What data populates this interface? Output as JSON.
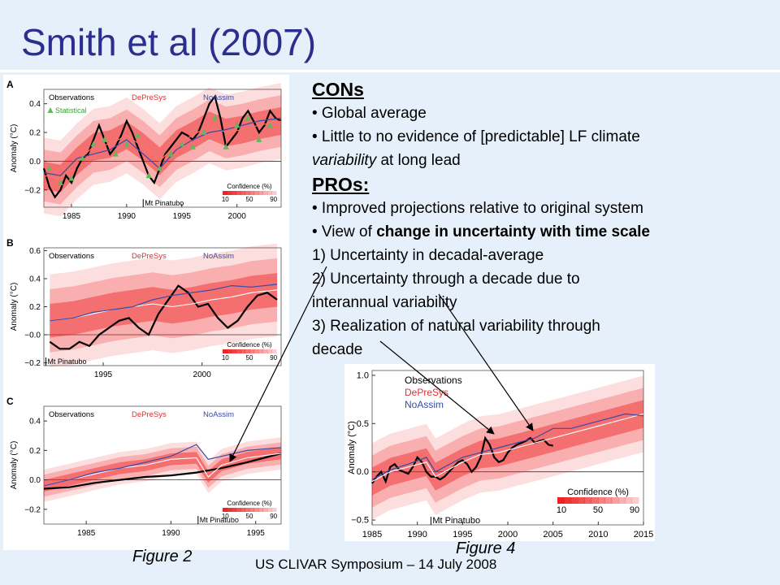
{
  "title": "Smith et al (2007)",
  "footer": "US CLIVAR Symposium  – 14 July 2008",
  "captions": {
    "fig2": "Figure 2",
    "fig4": "Figure 4"
  },
  "bullets": {
    "cons_heading": "CONs",
    "cons_1": "• Global average",
    "cons_2a": "• Little to no evidence of [predictable] LF climate",
    "cons_2b_italic": "variability",
    "cons_2b_rest": " at long lead",
    "pros_heading": "PROs:",
    "pros_1": "• Improved projections relative to original system",
    "pros_2_prefix": "• View of ",
    "pros_2_bold": "change in uncertainty with time scale",
    "item_1": "1) Uncertainty in decadal-average",
    "item_2a": "2) Uncertainty through a decade due to",
    "item_2b": "interannual variability",
    "item_3a": "3) Realization of natural variability through",
    "item_3b": "decade"
  },
  "chart_data": [
    {
      "type": "line",
      "panel_letter": "A",
      "ylabel": "Anomaly (°C)",
      "xlim": [
        1982.5,
        2004
      ],
      "ylim": [
        -0.32,
        0.5
      ],
      "xticks": [
        1985,
        1990,
        1995,
        2000
      ],
      "yticks": [
        -0.2,
        0.0,
        0.2,
        0.4
      ],
      "ytick_labels": [
        "−0.2",
        "0.0",
        "0.2",
        "0.4"
      ],
      "legend": [
        "Observations",
        "DePreSys",
        "NoAssim",
        "Statistical"
      ],
      "annotation": "Mt Pinatubo",
      "annotation_x": 1991.5,
      "confidence_label": "Confidence (%)",
      "confidence_ticks": [
        "10",
        "50",
        "90"
      ],
      "series": [
        {
          "name": "Observations",
          "color": "#000000",
          "x": [
            1982.5,
            1983,
            1983.5,
            1984,
            1984.5,
            1985,
            1985.5,
            1986,
            1986.5,
            1987,
            1987.5,
            1988,
            1988.5,
            1989,
            1989.5,
            1990,
            1990.5,
            1991,
            1991.5,
            1992,
            1992.5,
            1993,
            1993.5,
            1994,
            1994.5,
            1995,
            1995.5,
            1996,
            1996.5,
            1997,
            1997.5,
            1998,
            1998.5,
            1999,
            1999.5,
            2000,
            2000.5,
            2001,
            2001.5,
            2002,
            2002.5,
            2003,
            2003.5,
            2004
          ],
          "values": [
            -0.05,
            -0.18,
            -0.25,
            -0.2,
            -0.1,
            -0.15,
            -0.05,
            0.02,
            0.05,
            0.15,
            0.25,
            0.15,
            0.05,
            0.1,
            0.18,
            0.28,
            0.2,
            0.1,
            0.0,
            -0.1,
            -0.15,
            -0.05,
            0.05,
            0.1,
            0.15,
            0.2,
            0.18,
            0.15,
            0.2,
            0.3,
            0.4,
            0.45,
            0.3,
            0.1,
            0.15,
            0.2,
            0.3,
            0.35,
            0.28,
            0.2,
            0.25,
            0.35,
            0.3,
            0.28
          ]
        },
        {
          "name": "DePreSys",
          "color": "#f07a6e",
          "x": [
            1982.5,
            1984,
            1985.5,
            1987,
            1988.5,
            1990,
            1991.5,
            1993,
            1994.5,
            1996,
            1997.5,
            1999,
            2000.5,
            2002,
            2004
          ],
          "values": [
            -0.1,
            -0.12,
            0.0,
            0.1,
            0.12,
            0.18,
            0.1,
            0.0,
            0.12,
            0.18,
            0.25,
            0.2,
            0.22,
            0.25,
            0.28
          ],
          "band": 0.12
        },
        {
          "name": "NoAssim",
          "color": "#3a4aa8",
          "x": [
            1982.5,
            1984,
            1985.5,
            1987,
            1988.5,
            1990,
            1991.5,
            1993,
            1994.5,
            1996,
            1997.5,
            1999,
            2000.5,
            2002,
            2004
          ],
          "values": [
            -0.08,
            -0.1,
            0.02,
            0.05,
            0.08,
            0.15,
            0.05,
            -0.05,
            0.08,
            0.15,
            0.2,
            0.22,
            0.25,
            0.28,
            0.3
          ]
        },
        {
          "name": "Statistical",
          "color": "#5fb85a",
          "marker": "triangle",
          "x": [
            1983,
            1984,
            1985,
            1986,
            1987,
            1988,
            1989,
            1990,
            1991,
            1992,
            1993,
            1994,
            1995,
            1996,
            1997,
            1998,
            1999,
            2000,
            2001,
            2002,
            2003
          ],
          "values": [
            -0.05,
            -0.15,
            -0.12,
            0.02,
            0.12,
            0.15,
            0.05,
            0.12,
            0.18,
            -0.1,
            -0.05,
            0.05,
            0.12,
            0.1,
            0.2,
            0.3,
            0.1,
            0.25,
            0.3,
            0.15,
            0.25
          ]
        }
      ]
    },
    {
      "type": "line",
      "panel_letter": "B",
      "ylabel": "Anomaly (°C)",
      "xlim": [
        1992,
        2004
      ],
      "ylim": [
        -0.22,
        0.62
      ],
      "xticks": [
        1995,
        2000
      ],
      "yticks": [
        -0.2,
        0.0,
        0.2,
        0.4,
        0.6
      ],
      "ytick_labels": [
        "−0.2",
        "−0.0",
        "0.2",
        "0.4",
        "0.6"
      ],
      "legend": [
        "Observations",
        "DePreSys",
        "NoAssim"
      ],
      "annotation": "Mt Pinatubo",
      "annotation_x": 1992.1,
      "confidence_label": "Confidence (%)",
      "confidence_ticks": [
        "10",
        "50",
        "90"
      ],
      "series": [
        {
          "name": "Observations",
          "color": "#000000",
          "x": [
            1992.3,
            1992.8,
            1993.3,
            1993.8,
            1994.3,
            1994.8,
            1995.3,
            1995.8,
            1996.3,
            1996.8,
            1997.3,
            1997.8,
            1998.3,
            1998.8,
            1999.3,
            1999.8,
            2000.3,
            2000.8,
            2001.3,
            2001.8,
            2002.3,
            2002.8,
            2003.3,
            2003.8
          ],
          "values": [
            -0.05,
            -0.1,
            -0.1,
            -0.05,
            -0.08,
            0.0,
            0.05,
            0.1,
            0.12,
            0.05,
            0.0,
            0.15,
            0.25,
            0.35,
            0.3,
            0.2,
            0.22,
            0.12,
            0.05,
            0.1,
            0.2,
            0.28,
            0.3,
            0.25
          ]
        },
        {
          "name": "DePreSys",
          "color": "#ffffff",
          "x": [
            1992.3,
            1993.5,
            1994.5,
            1995.5,
            1996.5,
            1997.5,
            1998.5,
            1999.5,
            2000.5,
            2001.5,
            2002.5,
            2003.8
          ],
          "values": [
            0.1,
            0.12,
            0.15,
            0.18,
            0.2,
            0.22,
            0.2,
            0.22,
            0.25,
            0.27,
            0.3,
            0.32
          ],
          "band": 0.15
        },
        {
          "name": "NoAssim",
          "color": "#3a4aa8",
          "x": [
            1992.3,
            1993.5,
            1994.5,
            1995.5,
            1996.5,
            1997.5,
            1998.5,
            1999.5,
            2000.5,
            2001.5,
            2002.5,
            2003.8
          ],
          "values": [
            0.1,
            0.12,
            0.16,
            0.18,
            0.2,
            0.25,
            0.28,
            0.3,
            0.32,
            0.35,
            0.34,
            0.36
          ]
        }
      ]
    },
    {
      "type": "line",
      "panel_letter": "C",
      "ylabel": "Anomaly (°C)",
      "xlim": [
        1982.5,
        1996.5
      ],
      "ylim": [
        -0.3,
        0.5
      ],
      "xticks": [
        1985,
        1990,
        1995
      ],
      "yticks": [
        -0.2,
        0.0,
        0.2,
        0.4
      ],
      "ytick_labels": [
        "−0.2",
        "0.0",
        "0.2",
        "0.4"
      ],
      "legend": [
        "Observations",
        "DePreSys",
        "NoAssim"
      ],
      "annotation": "Mt Pinatubo",
      "annotation_x": 1991.6,
      "confidence_label": "Confidence (%)",
      "confidence_ticks": [
        "10",
        "50",
        "90"
      ],
      "series": [
        {
          "name": "Observations",
          "color": "#000000",
          "x": [
            1982.5,
            1984,
            1985.5,
            1987,
            1988.5,
            1990,
            1991.5,
            1993,
            1994.5,
            1996.5
          ],
          "values": [
            -0.06,
            -0.05,
            -0.02,
            0.0,
            0.02,
            0.03,
            0.05,
            0.08,
            0.12,
            0.18
          ]
        },
        {
          "name": "DePreSys",
          "color": "#ffffff",
          "x": [
            1982.5,
            1984,
            1985.5,
            1987,
            1988.5,
            1990,
            1991.5,
            1992.2,
            1993,
            1994.5,
            1996.5
          ],
          "values": [
            -0.04,
            0.0,
            0.04,
            0.08,
            0.1,
            0.14,
            0.15,
            0.02,
            0.1,
            0.15,
            0.18
          ],
          "band": 0.05
        },
        {
          "name": "NoAssim",
          "color": "#3a4aa8",
          "x": [
            1982.5,
            1984,
            1985.5,
            1987,
            1988.5,
            1990,
            1991.5,
            1992.2,
            1993,
            1994.5,
            1996.5
          ],
          "values": [
            -0.04,
            0.0,
            0.05,
            0.08,
            0.12,
            0.16,
            0.24,
            0.14,
            0.16,
            0.2,
            0.22
          ]
        }
      ]
    },
    {
      "type": "line",
      "panel_letter": "",
      "ylabel": "Anomaly (°C)",
      "xlim": [
        1985,
        2015
      ],
      "ylim": [
        -0.55,
        1.05
      ],
      "xticks": [
        1985,
        1990,
        1995,
        2000,
        2005,
        2010,
        2015
      ],
      "yticks": [
        -0.5,
        0.0,
        0.5,
        1.0
      ],
      "ytick_labels": [
        "−0.5",
        "0.0",
        "0.5",
        "1.0"
      ],
      "legend": [
        "Observations",
        "DePreSys",
        "NoAssim"
      ],
      "annotation": "Mt Pinatubo",
      "annotation_x": 1991.5,
      "confidence_label": "Confidence (%)",
      "confidence_ticks": [
        "10",
        "50",
        "90"
      ],
      "series": [
        {
          "name": "Observations",
          "color": "#000000",
          "x": [
            1985,
            1985.5,
            1986,
            1986.5,
            1987,
            1987.5,
            1988,
            1988.5,
            1989,
            1989.5,
            1990,
            1990.5,
            1991,
            1991.5,
            1992,
            1992.5,
            1993,
            1993.5,
            1994,
            1994.5,
            1995,
            1995.5,
            1996,
            1996.5,
            1997,
            1997.5,
            1998,
            1998.5,
            1999,
            1999.5,
            2000,
            2000.5,
            2001,
            2001.5,
            2002,
            2002.5,
            2003,
            2003.5,
            2004,
            2004.5,
            2005
          ],
          "values": [
            -0.12,
            -0.05,
            0.0,
            -0.1,
            0.05,
            0.08,
            0.02,
            0.0,
            -0.02,
            0.05,
            0.15,
            0.1,
            0.0,
            -0.05,
            -0.05,
            -0.08,
            -0.05,
            0.0,
            0.05,
            0.1,
            0.12,
            0.08,
            0.0,
            0.05,
            0.15,
            0.35,
            0.28,
            0.15,
            0.1,
            0.12,
            0.2,
            0.25,
            0.28,
            0.3,
            0.32,
            0.35,
            0.3,
            0.32,
            0.33,
            0.28,
            0.27
          ]
        },
        {
          "name": "DePreSys",
          "color": "#ffffff",
          "x": [
            1985,
            1987,
            1989,
            1991,
            1992,
            1993,
            1995,
            1997,
            1999,
            2001,
            2003,
            2005,
            2007,
            2009,
            2011,
            2013,
            2015
          ],
          "values": [
            -0.1,
            0.0,
            0.05,
            0.1,
            -0.05,
            0.0,
            0.1,
            0.18,
            0.2,
            0.25,
            0.3,
            0.35,
            0.4,
            0.45,
            0.5,
            0.55,
            0.6
          ],
          "band": 0.18
        },
        {
          "name": "NoAssim",
          "color": "#3a4aa8",
          "x": [
            1985,
            1987,
            1989,
            1991,
            1992,
            1993,
            1995,
            1997,
            1999,
            2001,
            2003,
            2005,
            2007,
            2009,
            2011,
            2013,
            2015
          ],
          "values": [
            -0.08,
            0.02,
            0.08,
            0.15,
            0.0,
            0.05,
            0.15,
            0.2,
            0.25,
            0.3,
            0.35,
            0.45,
            0.45,
            0.5,
            0.55,
            0.6,
            0.58
          ]
        }
      ]
    }
  ]
}
